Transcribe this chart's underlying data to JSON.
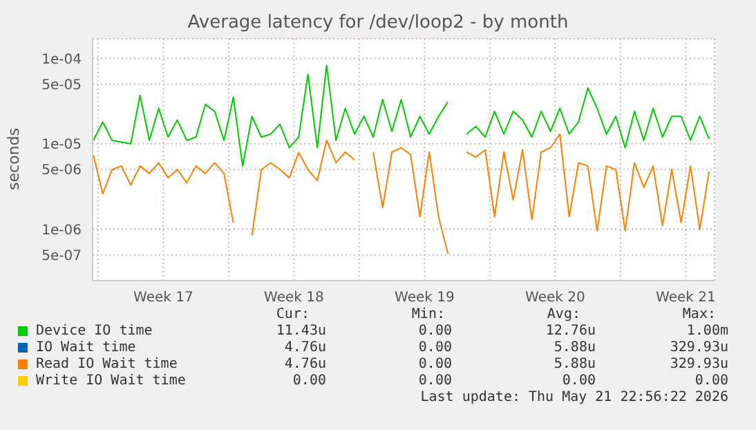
{
  "chart_data": {
    "type": "line",
    "title": "Average latency for /dev/loop2 - by month",
    "ylabel": "seconds",
    "log": "y",
    "grid": true,
    "legend": "bottom",
    "x": [
      "2026-04-19T18:00",
      "2026-04-20T06:00",
      "2026-04-20T18:00",
      "2026-04-21T06:00",
      "2026-04-21T18:00",
      "2026-04-22T06:00",
      "2026-04-22T18:00",
      "2026-04-23T06:00",
      "2026-04-23T18:00",
      "2026-04-24T06:00",
      "2026-04-24T18:00",
      "2026-04-25T06:00",
      "2026-04-25T18:00",
      "2026-04-26T06:00",
      "2026-04-26T18:00",
      "2026-04-27T06:00",
      "2026-04-27T18:00",
      "2026-04-28T06:00",
      "2026-04-28T18:00",
      "2026-04-29T06:00",
      "2026-04-29T18:00",
      "2026-04-30T06:00",
      "2026-04-30T18:00",
      "2026-05-01T06:00",
      "2026-05-01T18:00",
      "2026-05-02T06:00",
      "2026-05-02T18:00",
      "2026-05-03T06:00",
      "2026-05-03T18:00",
      "2026-05-04T06:00",
      "2026-05-04T18:00",
      "2026-05-05T06:00",
      "2026-05-05T18:00",
      "2026-05-06T06:00",
      "2026-05-06T18:00",
      "2026-05-07T06:00",
      "2026-05-07T18:00",
      "2026-05-08T06:00",
      "2026-05-08T18:00",
      "2026-05-09T06:00",
      "2026-05-09T18:00",
      "2026-05-10T06:00",
      "2026-05-10T18:00",
      "2026-05-11T06:00",
      "2026-05-11T18:00",
      "2026-05-12T06:00",
      "2026-05-12T18:00",
      "2026-05-13T06:00",
      "2026-05-13T18:00",
      "2026-05-14T06:00",
      "2026-05-14T18:00",
      "2026-05-15T06:00",
      "2026-05-15T18:00",
      "2026-05-16T06:00",
      "2026-05-16T18:00",
      "2026-05-17T06:00",
      "2026-05-17T18:00",
      "2026-05-18T06:00",
      "2026-05-18T18:00",
      "2026-05-19T06:00",
      "2026-05-19T18:00",
      "2026-05-20T06:00",
      "2026-05-20T18:00",
      "2026-05-21T06:00",
      "2026-05-21T18:00",
      "2026-05-22T06:00",
      "2026-05-22T18:00"
    ],
    "xlim": [
      "2026-04-19T17:00",
      "2026-05-23T01:00"
    ],
    "xticks": [
      {
        "value": "2026-04-20T00:00",
        "label": null
      },
      {
        "value": "2026-04-23T12:00",
        "label": "Week 17"
      },
      {
        "value": "2026-04-27T00:00",
        "label": null
      },
      {
        "value": "2026-04-30T12:00",
        "label": "Week 18"
      },
      {
        "value": "2026-05-04T00:00",
        "label": null
      },
      {
        "value": "2026-05-07T12:00",
        "label": "Week 19"
      },
      {
        "value": "2026-05-11T00:00",
        "label": null
      },
      {
        "value": "2026-05-14T12:00",
        "label": "Week 20"
      },
      {
        "value": "2026-05-18T00:00",
        "label": null
      },
      {
        "value": "2026-05-21T12:00",
        "label": "Week 21"
      }
    ],
    "ylim": [
      2.5e-07,
      0.00017
    ],
    "yticks": [
      {
        "value": 5e-07,
        "label": "5e-07"
      },
      {
        "value": 1e-06,
        "label": "1e-06"
      },
      {
        "value": 5e-06,
        "label": "5e-06"
      },
      {
        "value": 1e-05,
        "label": "1e-05"
      },
      {
        "value": 5e-05,
        "label": "5e-05"
      },
      {
        "value": 0.0001,
        "label": "1e-04"
      }
    ],
    "series": [
      {
        "name": "Device IO time",
        "color": "#00cc00",
        "values": [
          1.1e-05,
          1.8e-05,
          1.1e-05,
          1.05e-05,
          1e-05,
          3.7e-05,
          1.1e-05,
          2.6e-05,
          1.2e-05,
          1.9e-05,
          1.1e-05,
          1.2e-05,
          2.9e-05,
          2.4e-05,
          1.1e-05,
          3.5e-05,
          5.5e-06,
          2.1e-05,
          1.2e-05,
          1.3e-05,
          1.7e-05,
          9e-06,
          1.2e-05,
          6.5e-05,
          9e-06,
          8.3e-05,
          1.1e-05,
          2.6e-05,
          1.3e-05,
          2.1e-05,
          1.2e-05,
          3.3e-05,
          1.4e-05,
          3.3e-05,
          1.2e-05,
          2.1e-05,
          1.3e-05,
          2.1e-05,
          3.1e-05,
          null,
          1.3e-05,
          1.6e-05,
          1.2e-05,
          2.4e-05,
          1.3e-05,
          2.4e-05,
          1.9e-05,
          1.2e-05,
          2.4e-05,
          1.4e-05,
          2.6e-05,
          1.3e-05,
          1.8e-05,
          4.5e-05,
          2.6e-05,
          1.3e-05,
          2.1e-05,
          9e-06,
          2.4e-05,
          1.1e-05,
          2.6e-05,
          1.2e-05,
          2.1e-05,
          2.1e-05,
          1.1e-05,
          2.1e-05,
          1.14e-05
        ]
      },
      {
        "name": "IO Wait time",
        "color": "#0066b3",
        "values": [
          null,
          null,
          null,
          null,
          null,
          null,
          null,
          null,
          null,
          null,
          null,
          null,
          null,
          null,
          null,
          null,
          null,
          null,
          null,
          null,
          null,
          null,
          null,
          null,
          null,
          null,
          null,
          null,
          null,
          null,
          null,
          null,
          null,
          null,
          null,
          null,
          null,
          null,
          null,
          null,
          null,
          null,
          null,
          null,
          null,
          null,
          null,
          null,
          null,
          null,
          null,
          null,
          null,
          null,
          null,
          null,
          null,
          null,
          null,
          null,
          null,
          null,
          null,
          null,
          null,
          null,
          null
        ]
      },
      {
        "name": "Read IO Wait time",
        "color": "#ff8000",
        "values": [
          7.4e-06,
          2.6e-06,
          5e-06,
          5.5e-06,
          3.3e-06,
          5.5e-06,
          4.5e-06,
          6e-06,
          4e-06,
          5e-06,
          3.5e-06,
          5.5e-06,
          4.5e-06,
          6e-06,
          4.5e-06,
          1.2e-06,
          null,
          8.5e-07,
          5e-06,
          6e-06,
          5e-06,
          4e-06,
          7.9e-06,
          5e-06,
          3.7e-06,
          1.1e-05,
          6e-06,
          8e-06,
          6.5e-06,
          null,
          8e-06,
          1.8e-06,
          8e-06,
          9e-06,
          7.5e-06,
          1.4e-06,
          8e-06,
          1.4e-06,
          5.2e-07,
          null,
          8e-06,
          7e-06,
          8.5e-06,
          1.4e-06,
          8e-06,
          2.2e-06,
          8.5e-06,
          1.3e-06,
          8e-06,
          9e-06,
          1.3e-05,
          1.4e-06,
          6e-06,
          5.5e-06,
          9.6e-07,
          5.5e-06,
          5e-06,
          9.6e-07,
          6e-06,
          3.1e-06,
          5.5e-06,
          1.1e-06,
          5e-06,
          1.2e-06,
          5.5e-06,
          1e-06,
          4.76e-06
        ]
      },
      {
        "name": "Write IO Wait time",
        "color": "#ffcc00",
        "values": [
          null,
          null,
          null,
          null,
          null,
          null,
          null,
          null,
          null,
          null,
          null,
          null,
          null,
          null,
          null,
          null,
          null,
          null,
          null,
          null,
          null,
          null,
          null,
          null,
          null,
          null,
          null,
          null,
          null,
          null,
          null,
          null,
          null,
          null,
          null,
          null,
          null,
          null,
          null,
          null,
          null,
          null,
          null,
          null,
          null,
          null,
          null,
          null,
          null,
          null,
          null,
          null,
          null,
          null,
          null,
          null,
          null,
          null,
          null,
          null,
          null,
          null,
          null,
          null,
          null,
          null,
          null
        ]
      }
    ],
    "annotations": [
      "Cur:",
      "Min:",
      "Avg:",
      "Max:",
      "11.43u",
      "0.00",
      "12.76u",
      "1.00m",
      "4.76u",
      "0.00",
      "5.88u",
      "329.93u",
      "4.76u",
      "0.00",
      "5.88u",
      "329.93u",
      "0.00",
      "0.00",
      "0.00",
      "0.00",
      "Last update: Thu May 21 22:56:22 2026"
    ]
  }
}
